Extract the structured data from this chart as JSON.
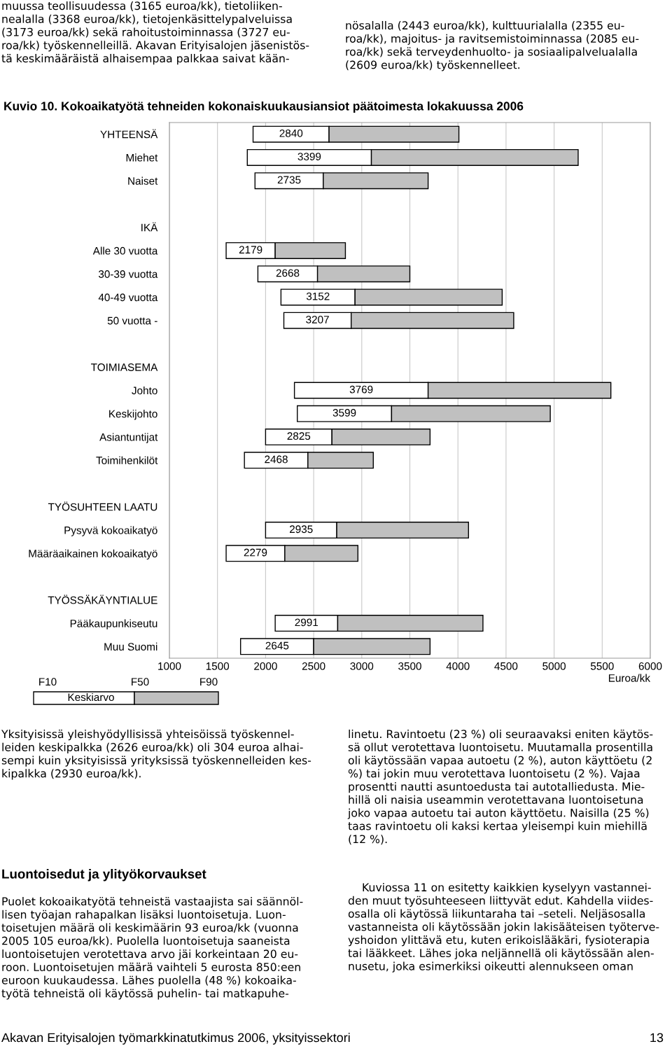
{
  "chart_data": {
    "type": "bar",
    "orientation": "horizontal",
    "title": "Kuvio 10. Kokoaikatyötä tehneiden kokonaiskuukausiansiot päätoimesta lokakuussa 2006",
    "xlabel": "Euroa/kk",
    "categories": [
      "YHTEENSÄ",
      "Miehet",
      "Naiset",
      null,
      "IKÄ",
      "Alle 30 vuotta",
      "30-39 vuotta",
      "40-49 vuotta",
      "50 vuotta -",
      null,
      "TOIMIASEMA",
      "Johto",
      "Keskijohto",
      "Asiantuntijat",
      "Toimihenkilöt",
      null,
      "TYÖSUHTEEN LAATU",
      "Pysyvä kokoaikatyö",
      "Määräaikainen kokoaikatyö",
      null,
      "TYÖSSÄKÄYNTIALUE",
      "Pääkaupunkiseutu",
      "Muu Suomi"
    ],
    "series": [
      {
        "color": "#ffffff",
        "base": [
          1870,
          1810,
          1890,
          null,
          null,
          1590,
          1920,
          2160,
          2190,
          null,
          null,
          2300,
          2330,
          2000,
          1780,
          null,
          null,
          2000,
          1590,
          null,
          null,
          2100,
          1740
        ],
        "values": [
          790,
          1290,
          710,
          null,
          null,
          510,
          620,
          770,
          700,
          null,
          null,
          1390,
          980,
          690,
          660,
          null,
          null,
          740,
          610,
          null,
          null,
          650,
          760
        ]
      },
      {
        "color": "#c0c0c0",
        "base": [
          2660,
          3100,
          2600,
          null,
          null,
          2100,
          2540,
          2930,
          2890,
          null,
          null,
          3690,
          3310,
          2690,
          2440,
          null,
          null,
          2740,
          2200,
          null,
          null,
          2750,
          2500
        ],
        "values": [
          1350,
          2150,
          1090,
          null,
          null,
          730,
          960,
          1530,
          1690,
          null,
          null,
          1900,
          1650,
          1020,
          680,
          null,
          null,
          1370,
          760,
          null,
          null,
          1510,
          1210
        ]
      }
    ],
    "xlim": [
      1000,
      6000
    ],
    "xticks": [
      1000,
      1500,
      2000,
      2500,
      3000,
      3500,
      4000,
      4500,
      5000,
      5500,
      6000
    ],
    "grid": "x",
    "annotations": [
      "2840",
      "3399",
      "2735",
      "2179",
      "2668",
      "3152",
      "3207",
      "3769",
      "3599",
      "2825",
      "2468",
      "2935",
      "2279",
      "2991",
      "2645",
      "F10",
      "F50",
      "F90",
      "Keskiarvo",
      "muussa teollisuudessa (3165 euroa/kk), tietoliiken-\nnealalla (3368 euroa/kk), tietojenkäsittelypalveluissa\n(3173 euroa/kk) sekä rahoitustoiminnassa (3727 eu-\nroa/kk) työskennelleillä. Akavan Erityisalojen jäsenistös-\ntä keskimääräistä alhaisempaa palkkaa saivat kään-",
      "nösalalla (2443 euroa/kk), kulttuurialalla (2355 eu-\nroa/kk), majoitus- ja ravitsemistoiminnassa (2085 eu-\nroa/kk) sekä terveydenhuolto- ja sosiaalipalvelualalla\n(2609 euroa/kk) työskennelleet.",
      "Yksityisissä yleishyödyllisissä yhteisöissä työskennel-\nleiden keskipalkka (2626 euroa/kk) oli 304 euroa alhai-\nsempi kuin yksityisissä yrityksissä työskennelleiden kes-\nkipalkka (2930 euroa/kk).",
      "Luontoisedut ja ylityökorvaukset",
      "Puolet kokoaikatyötä tehneistä vastaajista sai säännöl-\nlisen työajan rahapalkan lisäksi luontoisetuja. Luon-\ntoisetujen määrä oli keskimäärin 93 euroa/kk (vuonna\n2005 105 euroa/kk). Puolella luontoisetuja saaneista\nluontoisetujen verotettava arvo jäi korkeintaan 20 eu-\nroon. Luontoisetujen määrä vaihteli 5 eurosta 850:een\neuroon kuukaudessa. Lähes puolella (48 %) kokoaika-\ntyötä tehneistä oli käytössä puhelin- tai matkapuhe-",
      "linetu. Ravintoetu (23 %) oli seuraavaksi eniten käytös-\nsä ollut verotettava luontoisetu. Muutamalla prosentilla\noli käytössään vapaa autoetu (2 %), auton käyttöetu (2\n%) tai jokin muu verotettava luontoisetu (2 %). Vajaa\nprosentti nautti asuntoedusta tai autotalliedusta. Mie-\nhillä oli naisia useammin verotettavana luontoisetuna\njoko vapaa autoetu tai auton käyttöetu. Naisilla (25 %)\ntaas ravintoetu oli kaksi kertaa yleisempi kuin miehillä\n(12 %).",
      "    Kuviossa 11 on esitetty kaikkien kyselyyn vastannei-\nden muut työsuhteeseen liittyvät edut. Kahdella viides-\nosalla oli käytössä liikuntaraha tai –seteli. Neljäsosalla\nvastanneista oli käytössään jokin lakisääteisen työterve-\nyshoidon ylittävä etu, kuten erikoislääkäri, fysioterapia\ntai lääkkeet. Lähes joka neljännellä oli käytössään alen-\nnusetu, joka esimerkiksi oikeutti alennukseen oman",
      "Akavan Erityisalojen työmarkkinatutkimus 2006, yksityissektori",
      "13"
    ]
  }
}
